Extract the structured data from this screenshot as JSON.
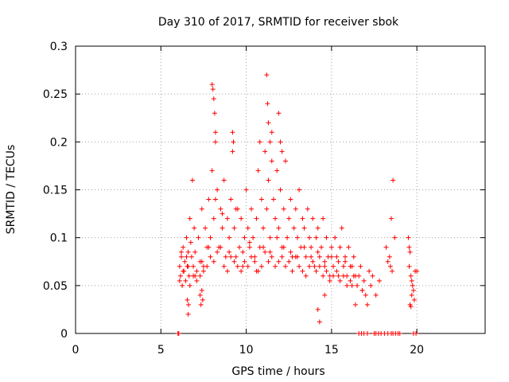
{
  "chart_data": {
    "type": "scatter",
    "title": "Day 310 of 2017, SRMTID for receiver sbok",
    "xlabel": "GPS time / hours",
    "ylabel": "SRMTID / TECUs",
    "xlim": [
      0,
      24
    ],
    "ylim": [
      0,
      0.3
    ],
    "xticks": [
      0,
      5,
      10,
      15,
      20
    ],
    "xtick_labels": [
      "0",
      "5",
      "10",
      "15",
      "20"
    ],
    "yticks": [
      0,
      0.05,
      0.1,
      0.15,
      0.2,
      0.25,
      0.3
    ],
    "ytick_labels": [
      "0",
      "0.05",
      "0.1",
      "0.15",
      "0.2",
      "0.25",
      "0.3"
    ],
    "grid": true,
    "marker": "plus",
    "color": "#ff0000",
    "series": [
      {
        "name": "SRMTID",
        "x": [
          6.0,
          6.05,
          16.6,
          16.75,
          16.9,
          17.1,
          17.5,
          17.6,
          17.75,
          17.9,
          18.1,
          18.3,
          18.5,
          18.6,
          18.75,
          18.9,
          19.0,
          19.8,
          19.95,
          6.1,
          6.15,
          6.2,
          6.25,
          6.3,
          6.35,
          6.4,
          6.45,
          6.5,
          6.55,
          6.6,
          6.65,
          6.7,
          6.75,
          6.8,
          6.85,
          6.9,
          6.95,
          7.0,
          7.1,
          7.2,
          7.3,
          7.4,
          7.5,
          7.6,
          7.7,
          7.8,
          7.9,
          8.0,
          8.1,
          8.2,
          8.3,
          8.4,
          8.5,
          8.6,
          8.7,
          8.8,
          8.9,
          9.0,
          9.1,
          9.2,
          9.3,
          9.4,
          9.5,
          9.6,
          9.7,
          9.8,
          9.9,
          10.0,
          10.1,
          10.2,
          10.3,
          10.4,
          10.5,
          10.6,
          10.7,
          10.8,
          10.9,
          11.0,
          11.1,
          11.2,
          11.3,
          11.4,
          11.5,
          11.6,
          11.7,
          11.8,
          11.9,
          12.0,
          12.1,
          12.2,
          12.3,
          12.4,
          12.5,
          12.6,
          12.7,
          12.8,
          12.9,
          13.0,
          13.1,
          13.2,
          13.3,
          13.4,
          13.5,
          13.6,
          13.7,
          13.8,
          13.9,
          14.0,
          14.1,
          14.2,
          14.3,
          14.4,
          14.5,
          14.6,
          14.7,
          14.8,
          14.9,
          15.0,
          15.1,
          15.2,
          15.3,
          15.4,
          15.5,
          15.6,
          15.7,
          15.8,
          15.9,
          16.0,
          16.1,
          16.2,
          16.3,
          16.4,
          6.1,
          6.3,
          6.5,
          6.7,
          6.9,
          7.1,
          7.3,
          7.5,
          7.7,
          7.9,
          8.1,
          8.3,
          8.5,
          8.7,
          8.9,
          9.1,
          9.3,
          9.5,
          9.7,
          9.9,
          10.1,
          10.3,
          10.5,
          10.7,
          10.9,
          11.1,
          11.3,
          11.5,
          11.7,
          11.9,
          12.1,
          12.3,
          12.5,
          12.7,
          12.9,
          13.1,
          13.3,
          13.5,
          13.7,
          13.9,
          14.1,
          14.3,
          14.5,
          14.7,
          14.9,
          15.1,
          15.3,
          15.5,
          15.7,
          15.9,
          16.1,
          16.3,
          6.2,
          6.6,
          7.0,
          7.4,
          7.8,
          8.2,
          8.6,
          9.0,
          9.4,
          9.8,
          10.2,
          10.6,
          11.0,
          11.4,
          11.8,
          12.2,
          12.6,
          13.0,
          13.4,
          13.8,
          14.2,
          14.6,
          15.0,
          15.4,
          15.8,
          16.2,
          8.0,
          8.05,
          8.1,
          8.15,
          8.2,
          9.2,
          9.25,
          11.2,
          11.25,
          11.3,
          11.4,
          11.5,
          11.9,
          12.0,
          12.1,
          10.8,
          6.55,
          6.6,
          6.62,
          7.3,
          7.35,
          7.4,
          7.45,
          14.2,
          14.3,
          14.6,
          16.4,
          16.8,
          16.5,
          16.6,
          16.7,
          16.8,
          16.9,
          17.0,
          17.1,
          17.2,
          17.3,
          17.4,
          17.6,
          17.8,
          18.2,
          18.3,
          18.4,
          18.5,
          18.6,
          18.7,
          18.55,
          18.45,
          19.5,
          19.55,
          19.6,
          19.65,
          19.7,
          19.75,
          19.8,
          19.85,
          19.9,
          19.6,
          19.7,
          19.55,
          20.0,
          19.65
        ],
        "y": [
          0.0,
          0.0,
          0.0,
          0.0,
          0.0,
          0.0,
          0.0,
          0.0,
          0.0,
          0.0,
          0.0,
          0.0,
          0.0,
          0.0,
          0.0,
          0.0,
          0.0,
          0.0,
          0.0,
          0.07,
          0.06,
          0.08,
          0.05,
          0.09,
          0.065,
          0.075,
          0.055,
          0.1,
          0.07,
          0.085,
          0.06,
          0.12,
          0.095,
          0.08,
          0.16,
          0.07,
          0.11,
          0.085,
          0.065,
          0.1,
          0.075,
          0.13,
          0.07,
          0.11,
          0.09,
          0.14,
          0.1,
          0.17,
          0.12,
          0.2,
          0.15,
          0.09,
          0.13,
          0.11,
          0.16,
          0.08,
          0.12,
          0.1,
          0.14,
          0.19,
          0.11,
          0.08,
          0.13,
          0.09,
          0.12,
          0.07,
          0.1,
          0.15,
          0.11,
          0.09,
          0.13,
          0.1,
          0.08,
          0.12,
          0.17,
          0.09,
          0.14,
          0.11,
          0.19,
          0.13,
          0.16,
          0.1,
          0.21,
          0.14,
          0.12,
          0.17,
          0.11,
          0.15,
          0.09,
          0.13,
          0.18,
          0.1,
          0.12,
          0.14,
          0.08,
          0.11,
          0.13,
          0.1,
          0.15,
          0.09,
          0.12,
          0.11,
          0.08,
          0.13,
          0.1,
          0.09,
          0.12,
          0.07,
          0.1,
          0.11,
          0.08,
          0.09,
          0.12,
          0.07,
          0.1,
          0.08,
          0.06,
          0.09,
          0.07,
          0.1,
          0.08,
          0.06,
          0.09,
          0.11,
          0.07,
          0.08,
          0.06,
          0.09,
          0.07,
          0.05,
          0.08,
          0.06,
          0.055,
          0.065,
          0.08,
          0.05,
          0.06,
          0.055,
          0.06,
          0.065,
          0.07,
          0.08,
          0.075,
          0.085,
          0.09,
          0.07,
          0.065,
          0.08,
          0.075,
          0.07,
          0.065,
          0.075,
          0.07,
          0.08,
          0.075,
          0.065,
          0.07,
          0.085,
          0.075,
          0.08,
          0.07,
          0.075,
          0.08,
          0.07,
          0.075,
          0.065,
          0.08,
          0.07,
          0.065,
          0.06,
          0.07,
          0.075,
          0.065,
          0.07,
          0.06,
          0.065,
          0.055,
          0.06,
          0.065,
          0.055,
          0.06,
          0.05,
          0.055,
          0.06,
          0.085,
          0.07,
          0.06,
          0.075,
          0.09,
          0.14,
          0.125,
          0.085,
          0.13,
          0.085,
          0.095,
          0.065,
          0.09,
          0.085,
          0.1,
          0.09,
          0.085,
          0.08,
          0.09,
          0.08,
          0.085,
          0.075,
          0.08,
          0.075,
          0.075,
          0.07,
          0.26,
          0.255,
          0.245,
          0.23,
          0.21,
          0.21,
          0.2,
          0.27,
          0.24,
          0.22,
          0.2,
          0.18,
          0.23,
          0.2,
          0.19,
          0.2,
          0.035,
          0.02,
          0.03,
          0.04,
          0.03,
          0.045,
          0.035,
          0.025,
          0.012,
          0.04,
          0.03,
          0.045,
          0.05,
          0.06,
          0.07,
          0.045,
          0.055,
          0.04,
          0.03,
          0.065,
          0.05,
          0.06,
          0.04,
          0.055,
          0.09,
          0.075,
          0.08,
          0.12,
          0.16,
          0.1,
          0.065,
          0.07,
          0.1,
          0.09,
          0.085,
          0.06,
          0.055,
          0.05,
          0.045,
          0.035,
          0.065,
          0.03,
          0.04,
          0.07,
          0.065,
          0.028
        ]
      }
    ]
  }
}
